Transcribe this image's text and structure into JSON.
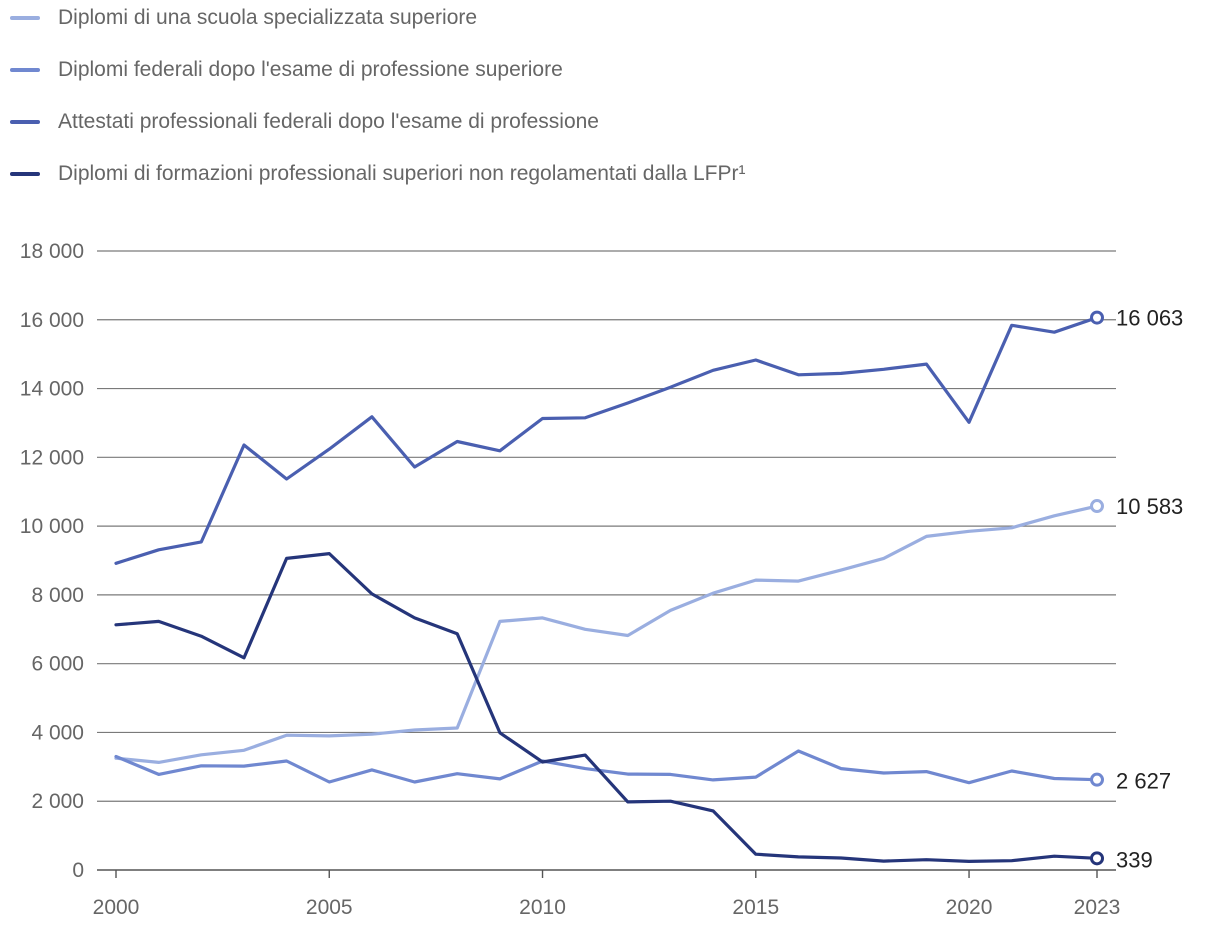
{
  "chart_data": {
    "type": "line",
    "title": "",
    "xlabel": "",
    "ylabel": "",
    "x": [
      2000,
      2001,
      2002,
      2003,
      2004,
      2005,
      2006,
      2007,
      2008,
      2009,
      2010,
      2011,
      2012,
      2013,
      2014,
      2015,
      2016,
      2017,
      2018,
      2019,
      2020,
      2021,
      2022,
      2023
    ],
    "xticks": [
      "2000",
      "2005",
      "2010",
      "2015",
      "2020",
      "2023"
    ],
    "xtick_values": [
      2000,
      2005,
      2010,
      2015,
      2020,
      2023
    ],
    "xlim": [
      2000,
      2023
    ],
    "ylim": [
      0,
      18000
    ],
    "yticks": [
      "0",
      "2 000",
      "4 000",
      "6 000",
      "8 000",
      "10 000",
      "12 000",
      "14 000",
      "16 000",
      "18 000"
    ],
    "ytick_values": [
      0,
      2000,
      4000,
      6000,
      8000,
      10000,
      12000,
      14000,
      16000,
      18000
    ],
    "grid": true,
    "legend_position": "top-left",
    "series": [
      {
        "name": "Diplomi di una scuola specializzata superiore",
        "color": "#9aaee0",
        "end_label": "10 583",
        "values": [
          3250,
          3130,
          3350,
          3480,
          3920,
          3900,
          3950,
          4070,
          4130,
          7230,
          7330,
          7000,
          6820,
          7550,
          8050,
          8430,
          8400,
          8720,
          9060,
          9700,
          9850,
          9950,
          10300,
          10583
        ]
      },
      {
        "name": "Diplomi federali dopo l'esame di professione superiore",
        "color": "#7088d0",
        "end_label": "2 627",
        "values": [
          3300,
          2780,
          3030,
          3020,
          3170,
          2560,
          2910,
          2560,
          2800,
          2650,
          3170,
          2950,
          2790,
          2780,
          2620,
          2700,
          3460,
          2950,
          2820,
          2860,
          2540,
          2880,
          2660,
          2627
        ]
      },
      {
        "name": "Attestati professionali federali dopo l'esame di professione",
        "color": "#4a5fb0",
        "end_label": "16 063",
        "values": [
          8920,
          9310,
          9540,
          12360,
          11370,
          12240,
          13180,
          11720,
          12460,
          12190,
          13130,
          13150,
          13580,
          14040,
          14530,
          14830,
          14400,
          14440,
          14560,
          14710,
          13020,
          15840,
          15640,
          16063
        ]
      },
      {
        "name": "Diplomi di formazioni professionali superiori non regolamentati dalla LFPr¹",
        "color": "#25357a",
        "end_label": "339",
        "values": [
          7130,
          7230,
          6800,
          6170,
          9060,
          9200,
          8030,
          7330,
          6870,
          3990,
          3140,
          3340,
          1980,
          2000,
          1720,
          460,
          380,
          350,
          260,
          300,
          250,
          270,
          400,
          339
        ]
      }
    ]
  }
}
